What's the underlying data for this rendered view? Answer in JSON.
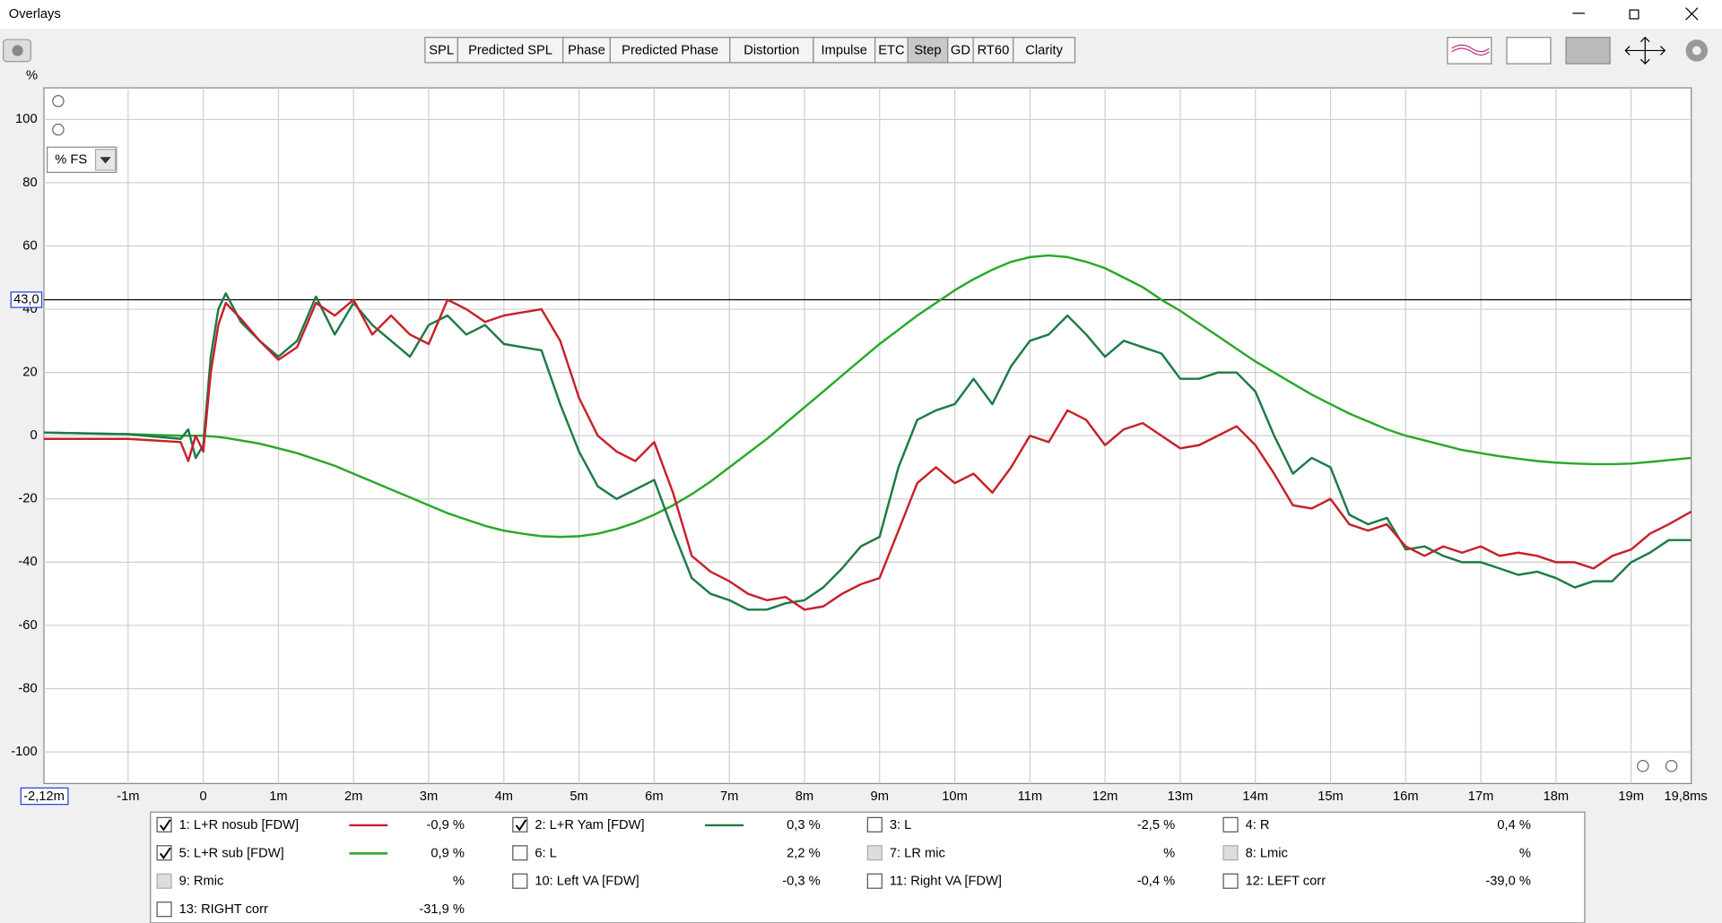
{
  "window": {
    "title": "Overlays"
  },
  "toolbar": {
    "tabs": [
      "SPL",
      "Predicted SPL",
      "Phase",
      "Predicted Phase",
      "Distortion",
      "Impulse",
      "ETC",
      "Step",
      "GD",
      "RT60",
      "Clarity"
    ],
    "selected": "Step"
  },
  "dropdown": "% FS",
  "chart_data": {
    "type": "line",
    "y_label": "%",
    "grid": true,
    "xlim": [
      -2.12,
      19.8
    ],
    "ylim": [
      -110,
      110
    ],
    "xticks": [
      {
        "value": -2.12,
        "label": "-2,12m"
      },
      {
        "value": -1,
        "label": "-1m"
      },
      0,
      {
        "value": 1,
        "label": "1m"
      },
      {
        "value": 2,
        "label": "2m"
      },
      {
        "value": 3,
        "label": "3m"
      },
      {
        "value": 4,
        "label": "4m"
      },
      {
        "value": 5,
        "label": "5m"
      },
      {
        "value": 6,
        "label": "6m"
      },
      {
        "value": 7,
        "label": "7m"
      },
      {
        "value": 8,
        "label": "8m"
      },
      {
        "value": 9,
        "label": "9m"
      },
      {
        "value": 10,
        "label": "10m"
      },
      {
        "value": 11,
        "label": "11m"
      },
      {
        "value": 12,
        "label": "12m"
      },
      {
        "value": 13,
        "label": "13m"
      },
      {
        "value": 14,
        "label": "14m"
      },
      {
        "value": 15,
        "label": "15m"
      },
      {
        "value": 16,
        "label": "16m"
      },
      {
        "value": 17,
        "label": "17m"
      },
      {
        "value": 18,
        "label": "18m"
      },
      {
        "value": 19,
        "label": "19m"
      },
      {
        "value": 19.8,
        "label": "19,8ms"
      }
    ],
    "yticks": [
      100,
      80,
      60,
      40,
      20,
      0,
      -20,
      -40,
      -60,
      -80,
      -100
    ],
    "cursor": {
      "value": 43,
      "label": "43,0"
    },
    "x": [
      -2.12,
      -1,
      -0.3,
      -0.2,
      -0.1,
      0,
      0.1,
      0.2,
      0.3,
      0.5,
      0.75,
      1,
      1.25,
      1.5,
      1.75,
      2,
      2.25,
      2.5,
      2.75,
      3,
      3.25,
      3.5,
      3.75,
      4,
      4.25,
      4.5,
      4.75,
      5,
      5.25,
      5.5,
      5.75,
      6,
      6.25,
      6.5,
      6.75,
      7,
      7.25,
      7.5,
      7.75,
      8,
      8.25,
      8.5,
      8.75,
      9,
      9.25,
      9.5,
      9.75,
      10,
      10.25,
      10.5,
      10.75,
      11,
      11.25,
      11.5,
      11.75,
      12,
      12.25,
      12.5,
      12.75,
      13,
      13.25,
      13.5,
      13.75,
      14,
      14.25,
      14.5,
      14.75,
      15,
      15.25,
      15.5,
      15.75,
      16,
      16.25,
      16.5,
      16.75,
      17,
      17.25,
      17.5,
      17.75,
      18,
      18.25,
      18.5,
      18.75,
      19,
      19.25,
      19.5,
      19.8
    ],
    "series": [
      {
        "name": "1: L+R nosub [FDW]",
        "color": "#c8202a",
        "checked": true,
        "enabled": true,
        "readout": "-0,9 %",
        "values": [
          -1,
          -1,
          -2,
          -8,
          0,
          -5,
          20,
          35,
          42,
          37,
          30,
          24,
          28,
          42,
          38,
          43,
          32,
          38,
          32,
          29,
          43,
          40,
          36,
          38,
          39,
          40,
          30,
          12,
          0,
          -5,
          -8,
          -2,
          -18,
          -38,
          -43,
          -46,
          -50,
          -52,
          -51,
          -55,
          -54,
          -50,
          -47,
          -45,
          -30,
          -15,
          -10,
          -15,
          -12,
          -18,
          -10,
          0,
          -2,
          8,
          5,
          -3,
          2,
          4,
          0,
          -4,
          -3,
          0,
          3,
          -3,
          -12,
          -22,
          -23,
          -20,
          -28,
          -30,
          -28,
          -35,
          -38,
          -35,
          -37,
          -35,
          -38,
          -37,
          -38,
          -40,
          -40,
          -42,
          -38,
          -36,
          -31,
          -28,
          -24
        ]
      },
      {
        "name": "2: L+R Yam [FDW]",
        "color": "#1e7a46",
        "checked": true,
        "enabled": true,
        "readout": "0,3 %",
        "values": [
          1,
          0.5,
          -1,
          2,
          -7,
          -3,
          25,
          40,
          45,
          36,
          30,
          25,
          30,
          44,
          32,
          42,
          35,
          30,
          25,
          35,
          38,
          32,
          35,
          29,
          28,
          27,
          10,
          -5,
          -16,
          -20,
          -17,
          -14,
          -30,
          -45,
          -50,
          -52,
          -55,
          -55,
          -53,
          -52,
          -48,
          -42,
          -35,
          -32,
          -10,
          5,
          8,
          10,
          18,
          10,
          22,
          30,
          32,
          38,
          32,
          25,
          30,
          28,
          26,
          18,
          18,
          20,
          20,
          14,
          0,
          -12,
          -7,
          -10,
          -25,
          -28,
          -26,
          -36,
          -35,
          -38,
          -40,
          -40,
          -42,
          -44,
          -43,
          -45,
          -48,
          -46,
          -46,
          -40,
          -37,
          -33,
          -33
        ]
      },
      {
        "name": "3: L",
        "color": "#3a5cc8",
        "checked": false,
        "enabled": true,
        "readout": "-2,5 %"
      },
      {
        "name": "4: R",
        "color": "#e07800",
        "checked": false,
        "enabled": true,
        "readout": "0,4 %"
      },
      {
        "name": "5: L+R sub [FDW]",
        "color": "#28a828",
        "checked": true,
        "enabled": true,
        "readout": "0,9 %",
        "values": [
          1,
          0.5,
          0,
          0,
          0,
          0,
          -0.2,
          -0.4,
          -0.7,
          -1.5,
          -2.5,
          -4,
          -5.5,
          -7.5,
          -9.5,
          -12,
          -14.5,
          -17,
          -19.5,
          -22,
          -24.5,
          -26.5,
          -28.5,
          -30,
          -31,
          -31.8,
          -32,
          -31.8,
          -31,
          -29.5,
          -27.5,
          -25,
          -22,
          -18.5,
          -14.5,
          -10,
          -5.5,
          -1,
          4,
          9,
          14,
          19,
          24,
          29,
          33.5,
          38,
          42,
          46,
          49.5,
          52.5,
          55,
          56.5,
          57,
          56.5,
          55,
          53,
          50,
          47,
          43,
          39.5,
          35.5,
          31.5,
          27.5,
          23.5,
          20,
          16.5,
          13,
          10,
          7,
          4.5,
          2,
          0,
          -1.5,
          -3,
          -4.5,
          -5.5,
          -6.5,
          -7.3,
          -8,
          -8.5,
          -8.8,
          -9,
          -9,
          -8.8,
          -8.3,
          -7.7,
          -7
        ]
      },
      {
        "name": "6: L",
        "color": "#2878b8",
        "checked": false,
        "enabled": true,
        "readout": "2,2 %"
      },
      {
        "name": "7: LR mic",
        "color": "#a8a8a8",
        "checked": false,
        "enabled": false,
        "readout": "%"
      },
      {
        "name": "8: Lmic",
        "color": "#a8a8a8",
        "checked": false,
        "enabled": false,
        "readout": "%"
      },
      {
        "name": "9: Rmic",
        "color": "#a8a8a8",
        "checked": false,
        "enabled": false,
        "readout": "%"
      },
      {
        "name": "10: Left VA [FDW]",
        "color": "#c020c0",
        "checked": false,
        "enabled": true,
        "readout": "-0,3 %"
      },
      {
        "name": "11: Right VA [FDW]",
        "color": "#c8202a",
        "checked": false,
        "enabled": true,
        "readout": "-0,4 %"
      },
      {
        "name": "12: LEFT corr",
        "color": "#207840",
        "checked": false,
        "enabled": true,
        "readout": "-39,0 %"
      },
      {
        "name": "13: RIGHT corr",
        "color": "#3040c8",
        "checked": false,
        "enabled": true,
        "readout": "-31,9 %"
      }
    ]
  }
}
